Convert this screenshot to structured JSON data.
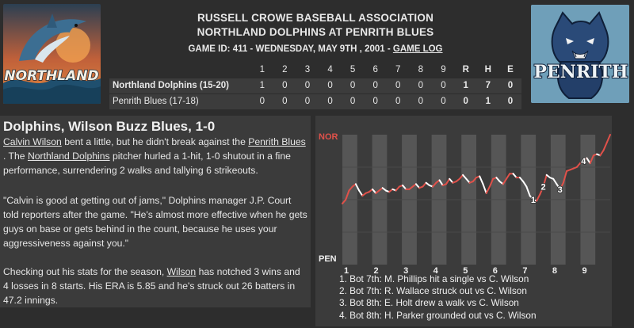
{
  "header": {
    "association": "RUSSELL CROWE BASEBALL ASSOCIATION",
    "matchup": "NORTHLAND DOLPHINS AT PENRITH BLUES",
    "game_id_text": "GAME ID: 411 - WEDNESDAY, MAY 9TH , 2001 - ",
    "game_log_label": "GAME LOG"
  },
  "logos": {
    "left_text": "NORTHLAND",
    "right_text": "PENRITH"
  },
  "linescore": {
    "innings": [
      "1",
      "2",
      "3",
      "4",
      "5",
      "6",
      "7",
      "8",
      "9"
    ],
    "totals_headers": [
      "R",
      "H",
      "E"
    ],
    "teams": [
      {
        "name": "Northland Dolphins (15-20)",
        "innings": [
          "1",
          "0",
          "0",
          "0",
          "0",
          "0",
          "0",
          "0",
          "0"
        ],
        "r": "1",
        "h": "7",
        "e": "0"
      },
      {
        "name": "Penrith Blues (17-18)",
        "innings": [
          "0",
          "0",
          "0",
          "0",
          "0",
          "0",
          "0",
          "0",
          "0"
        ],
        "r": "0",
        "h": "1",
        "e": "0"
      }
    ]
  },
  "story": {
    "headline": "Dolphins, Wilson Buzz Blues, 1-0",
    "p1_link1": "Calvin Wilson",
    "p1_text1": " bent a little, but he didn't break against the ",
    "p1_link2": "Penrith Blues",
    "p1_text2": " . The ",
    "p1_link3": "Northland Dolphins",
    "p1_text3": " pitcher hurled a 1-hit, 1-0 shutout in a fine performance, surrendering 2 walks and tallying 6 strikeouts.",
    "p2": "\"Calvin is good at getting out of jams,\" Dolphins manager J.P. Court told reporters after the game. \"He's almost more effective when he gets guys on base or gets behind in the count, because he uses your aggressiveness against you.\"",
    "p3_text1": "Checking out his stats for the season, ",
    "p3_link": "Wilson",
    "p3_text2": " has notched 3 wins and 4 losses in 8 starts. His ERA is 5.85 and he's struck out 26 batters in 47.2 innings."
  },
  "chart_data": {
    "type": "line",
    "top_label": "NOR",
    "bottom_label": "PEN",
    "x_ticks": [
      "1",
      "2",
      "3",
      "4",
      "5",
      "6",
      "7",
      "8",
      "9"
    ],
    "ylim": [
      0,
      1
    ],
    "y": [
      0.47,
      0.5,
      0.57,
      0.6,
      0.62,
      0.57,
      0.53,
      0.55,
      0.56,
      0.58,
      0.55,
      0.57,
      0.59,
      0.57,
      0.56,
      0.58,
      0.57,
      0.6,
      0.61,
      0.58,
      0.58,
      0.6,
      0.62,
      0.59,
      0.6,
      0.63,
      0.61,
      0.6,
      0.63,
      0.65,
      0.61,
      0.62,
      0.66,
      0.63,
      0.64,
      0.66,
      0.69,
      0.66,
      0.63,
      0.64,
      0.67,
      0.68,
      0.62,
      0.55,
      0.6,
      0.66,
      0.67,
      0.64,
      0.62,
      0.66,
      0.7,
      0.7,
      0.67,
      0.67,
      0.64,
      0.6,
      0.53,
      0.5,
      0.49,
      0.54,
      0.6,
      0.69,
      0.67,
      0.66,
      0.62,
      0.58,
      0.63,
      0.72,
      0.73,
      0.74,
      0.75,
      0.78,
      0.8,
      0.82,
      0.78,
      0.84,
      0.85,
      0.84,
      0.88,
      0.94,
      1.0
    ],
    "segment_colors": {
      "nor": "#e0514a",
      "pen": "#ffffff"
    },
    "markers": [
      {
        "label": "1",
        "index": 57
      },
      {
        "label": "2",
        "index": 60
      },
      {
        "label": "3",
        "index": 65
      },
      {
        "label": "4",
        "index": 72
      }
    ],
    "events": [
      "1. Bot 7th: M. Phillips hit a single vs C. Wilson",
      "2. Bot 7th: R. Wallace struck out vs C. Wilson",
      "3. Bot 8th: E. Holt drew a walk vs C. Wilson",
      "4. Bot 8th: H. Parker grounded out vs C. Wilson"
    ],
    "grid": true
  },
  "colors": {
    "background": "#2d2d2d",
    "panel": "#3b3b3b",
    "nor_red": "#e0514a",
    "text": "#e8e8e8"
  }
}
